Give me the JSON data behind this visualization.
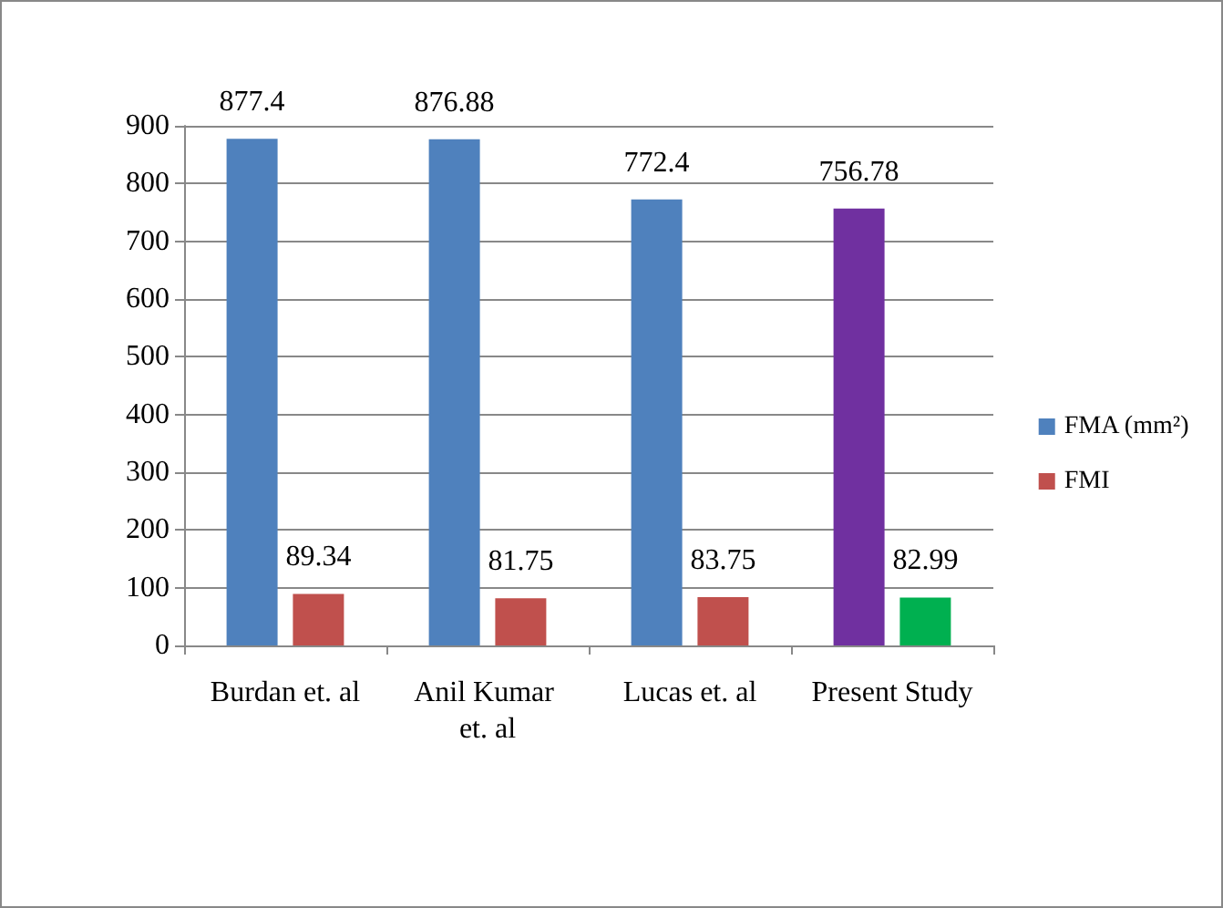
{
  "chart_data": {
    "type": "bar",
    "categories": [
      "Burdan et. al",
      "Anil Kumar et. al",
      "Lucas et. al",
      "Present Study"
    ],
    "series": [
      {
        "name": "FMA (mm²)",
        "color": "#4f81bd",
        "colors": [
          "#4f81bd",
          "#4f81bd",
          "#4f81bd",
          "#7030a0"
        ],
        "values": [
          877.4,
          876.88,
          772.4,
          756.78
        ]
      },
      {
        "name": "FMI",
        "color": "#c0504d",
        "colors": [
          "#c0504d",
          "#c0504d",
          "#c0504d",
          "#00b050"
        ],
        "values": [
          89.34,
          81.75,
          83.75,
          82.99
        ]
      }
    ],
    "ylim": [
      0,
      900
    ],
    "yticks": [
      0,
      100,
      200,
      300,
      400,
      500,
      600,
      700,
      800,
      900
    ],
    "grid": "y",
    "legend": "right",
    "data_labels": true
  }
}
